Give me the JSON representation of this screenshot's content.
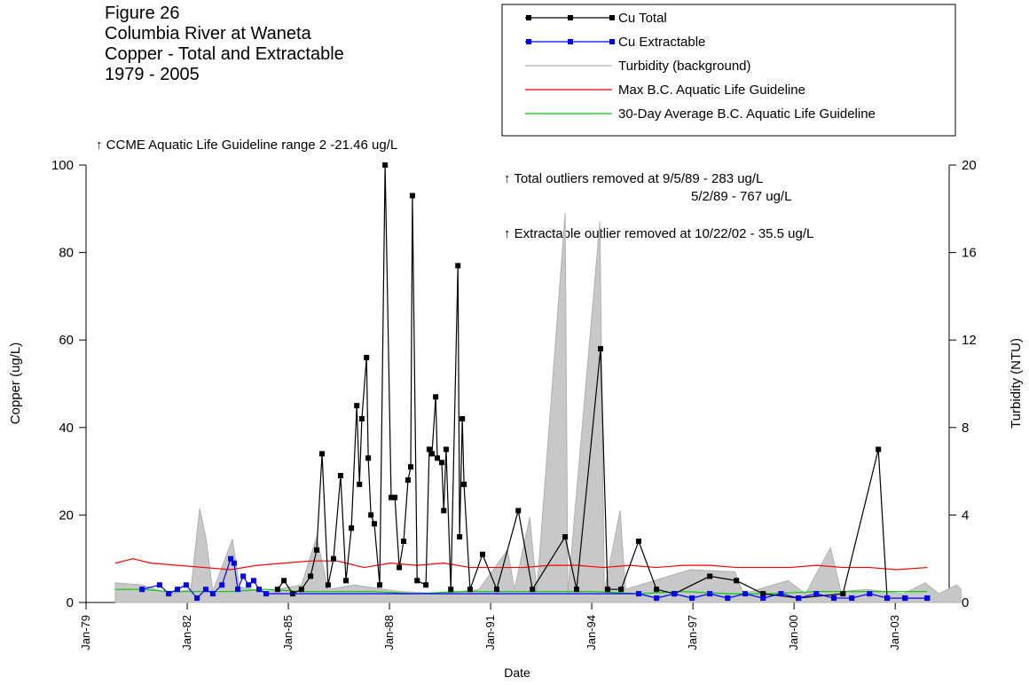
{
  "chart_data": {
    "type": "line",
    "title": [
      "Figure 26",
      "Columbia River at Waneta",
      "Copper - Total and Extractable",
      "1979 - 2005"
    ],
    "x_label": "Date",
    "y_label": "Copper (ug/L)",
    "y2_label": "Turbidity (NTU)",
    "annotations": [
      "↑ CCME Aquatic Life Guideline range 2 -21.46 ug/L",
      "↑ Total outliers removed at 9/5/89 - 283 ug/L",
      "5/2/89 - 767 ug/L",
      "↑ Extractable outlier removed at 10/22/02 - 35.5 ug/L"
    ],
    "legend": "top-right",
    "xlim": [
      1979,
      2004.6
    ],
    "xticks": [
      {
        "value": 1979,
        "label": "Jan-79"
      },
      {
        "value": 1982,
        "label": "Jan-82"
      },
      {
        "value": 1985,
        "label": "Jan-85"
      },
      {
        "value": 1988,
        "label": "Jan-88"
      },
      {
        "value": 1991,
        "label": "Jan-91"
      },
      {
        "value": 1994,
        "label": "Jan-94"
      },
      {
        "value": 1997,
        "label": "Jan-97"
      },
      {
        "value": 2000,
        "label": "Jan-00"
      },
      {
        "value": 2003,
        "label": "Jan-03"
      }
    ],
    "ylim": [
      0,
      100
    ],
    "yticks": [
      0,
      20,
      40,
      60,
      80,
      100
    ],
    "y2lim": [
      0,
      20
    ],
    "y2ticks": [
      0,
      4,
      8,
      12,
      16,
      20
    ],
    "series": [
      {
        "name": "Cu Total",
        "color": "#000000",
        "markers": true,
        "x": [
          1984.68,
          1984.87,
          1985.13,
          1985.39,
          1985.66,
          1985.84,
          1986.0,
          1986.18,
          1986.34,
          1986.55,
          1986.71,
          1986.87,
          1987.03,
          1987.11,
          1987.18,
          1987.32,
          1987.37,
          1987.45,
          1987.55,
          1987.71,
          1987.87,
          1988.05,
          1988.16,
          1988.29,
          1988.42,
          1988.55,
          1988.63,
          1988.68,
          1988.82,
          1989.08,
          1989.18,
          1989.26,
          1989.37,
          1989.42,
          1989.55,
          1989.61,
          1989.68,
          1989.82,
          1990.03,
          1990.08,
          1990.16,
          1990.21,
          1990.39,
          1990.76,
          1991.18,
          1991.82,
          1992.24,
          1993.21,
          1993.55,
          1994.26,
          1994.47,
          1994.87,
          1995.39,
          1995.92,
          1996.45,
          1997.5,
          1998.29,
          1999.08,
          2000.13,
          2001.45,
          2002.5,
          2002.76,
          2003.29,
          2003.95
        ],
        "values": [
          3,
          5,
          2,
          3,
          6,
          12,
          34,
          4,
          10,
          29,
          5,
          17,
          45,
          27,
          42,
          56,
          33,
          20,
          18,
          4,
          100,
          24,
          24,
          8,
          14,
          28,
          31,
          93,
          5,
          4,
          35,
          34,
          47,
          33,
          32,
          21,
          35,
          3,
          77,
          15,
          42,
          27,
          3,
          11,
          3,
          21,
          3,
          15,
          3,
          58,
          3,
          3,
          14,
          3,
          2,
          6,
          5,
          2,
          1,
          2,
          35,
          1,
          1,
          1
        ]
      },
      {
        "name": "Cu Extractable",
        "color": "#0000ff",
        "markers": true,
        "x": [
          1980.66,
          1981.18,
          1981.45,
          1981.71,
          1981.97,
          1982.29,
          1982.55,
          1982.76,
          1983.03,
          1983.29,
          1983.39,
          1983.5,
          1983.66,
          1983.82,
          1983.97,
          1984.13,
          1984.34,
          1995.39,
          1995.92,
          1996.45,
          1996.97,
          1997.5,
          1998.03,
          1998.55,
          1999.08,
          1999.61,
          2000.13,
          2000.66,
          2001.18,
          2001.71,
          2002.24,
          2002.76,
          2003.29,
          2003.95
        ],
        "values": [
          3,
          4,
          2,
          3,
          4,
          1,
          3,
          2,
          4,
          10,
          9,
          3,
          6,
          4,
          5,
          3,
          2,
          2,
          1,
          2,
          1,
          2,
          1,
          2,
          1,
          2,
          1,
          2,
          1,
          1,
          2,
          1,
          1,
          1
        ]
      },
      {
        "name": "Turbidity (background)",
        "color": "#c8c8c8",
        "area": true,
        "axis": "y2",
        "x": [
          1979.87,
          1980.66,
          1981.45,
          1982.11,
          1982.37,
          1982.55,
          1982.76,
          1983.34,
          1983.55,
          1984.34,
          1985.39,
          1985.84,
          1986.18,
          1986.97,
          1988.29,
          1989.61,
          1990.66,
          1991.5,
          1991.71,
          1992.16,
          1992.37,
          1993.21,
          1993.29,
          1994.24,
          1994.37,
          1994.84,
          1995.0,
          1996.92,
          1998.24,
          1998.5,
          1999.82,
          2000.34,
          2001.08,
          2001.39,
          2002.18,
          2003.24,
          2003.89,
          2004.29,
          2004.82,
          2004.95
        ],
        "values": [
          0.9,
          0.8,
          0.4,
          0.6,
          4.3,
          3,
          0.5,
          2.9,
          0.7,
          0.5,
          0.8,
          3,
          0.6,
          0.8,
          0.5,
          0.4,
          0.6,
          2.4,
          0.6,
          3.9,
          0.5,
          17.8,
          0.4,
          17.4,
          0.5,
          4.2,
          0.6,
          1.5,
          1.4,
          0.4,
          1.0,
          0.4,
          2.5,
          0.5,
          0.6,
          0.4,
          0.9,
          0.4,
          0.8,
          0.6
        ]
      },
      {
        "name": "Max B.C. Aquatic Life Guideline",
        "color": "#ff0000",
        "x": [
          1979.87,
          1980.39,
          1980.92,
          1981.71,
          1982.5,
          1983.29,
          1984.08,
          1984.87,
          1985.66,
          1986.45,
          1987.24,
          1988.03,
          1988.82,
          1989.61,
          1990.39,
          1991.18,
          1991.97,
          1992.76,
          1993.55,
          1994.34,
          1995.13,
          1995.92,
          1996.71,
          1997.5,
          1998.29,
          1999.08,
          1999.87,
          2000.66,
          2001.45,
          2002.24,
          2003.03,
          2003.95
        ],
        "values": [
          9,
          10,
          9,
          8.5,
          8,
          7.5,
          8.5,
          9,
          9.5,
          9.5,
          8,
          9,
          8.5,
          9,
          8,
          8,
          8,
          8.5,
          8.5,
          8,
          8.5,
          8,
          8.5,
          8.5,
          8,
          8,
          8,
          8.5,
          8,
          8,
          7.5,
          8
        ]
      },
      {
        "name": "30-Day Average B.C. Aquatic Life Guideline",
        "color": "#00cc00",
        "x": [
          1979.87,
          1980.66,
          1981.45,
          1982.5,
          1983.29,
          1984.34,
          1985.39,
          1986.45,
          1987.5,
          1988.82,
          1990.13,
          1991.45,
          1992.76,
          1994.08,
          1995.39,
          1996.71,
          1998.03,
          1999.34,
          2000.66,
          2001.97,
          2003.03,
          2003.95
        ],
        "values": [
          3,
          3,
          2.5,
          2.5,
          2.5,
          3,
          2.5,
          2.5,
          2.5,
          2,
          2.5,
          2.5,
          2.5,
          2.5,
          2,
          2.5,
          2,
          2,
          2.5,
          2.5,
          2.5,
          2.5
        ]
      }
    ]
  }
}
